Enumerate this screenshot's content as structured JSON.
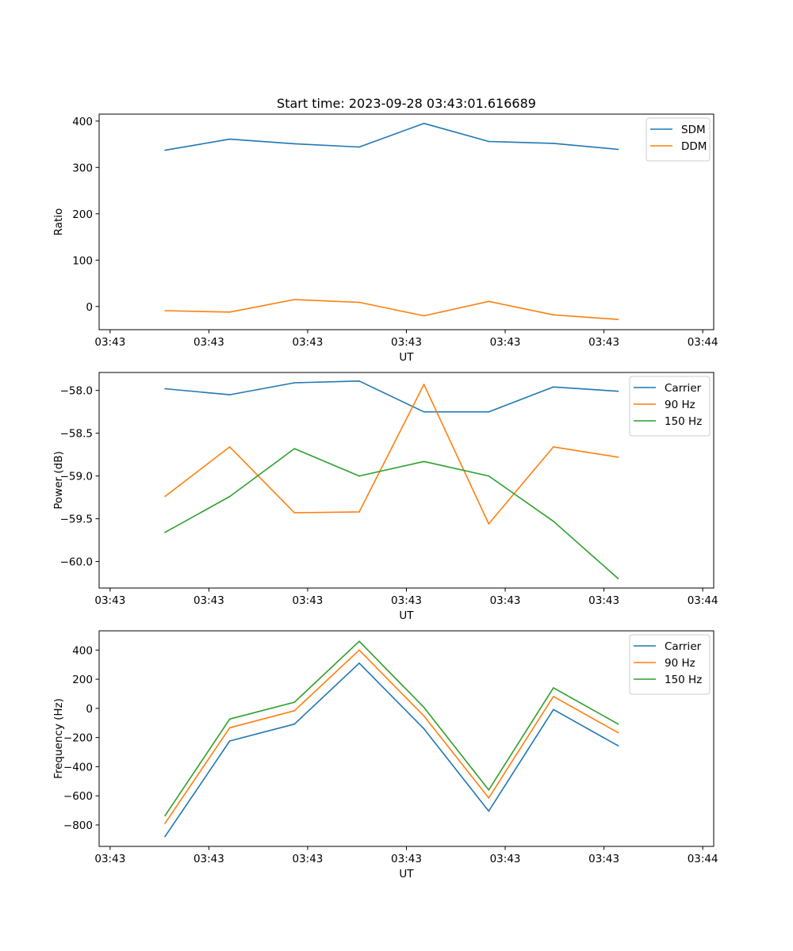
{
  "figure": {
    "title": "Start time: 2023-09-28 03:43:01.616689"
  },
  "chart_data": [
    {
      "type": "line",
      "xlabel": "UT",
      "ylabel": "Ratio",
      "xlim": [
        -0.12,
        1.0
      ],
      "ylim": [
        -50,
        415
      ],
      "x_ticks": [
        -0.1,
        0.08,
        0.26,
        0.44,
        0.62,
        0.8,
        0.98
      ],
      "x_tick_labels": [
        "03:43",
        "03:43",
        "03:43",
        "03:43",
        "03:43",
        "03:43",
        "03:44"
      ],
      "y_ticks": [
        0,
        100,
        200,
        300,
        400
      ],
      "y_tick_labels": [
        "0",
        "100",
        "200",
        "300",
        "400"
      ],
      "legend_position": "top-right",
      "x": [
        0.0,
        0.118,
        0.236,
        0.354,
        0.472,
        0.59,
        0.708,
        0.826
      ],
      "series": [
        {
          "name": "SDM",
          "color": "#1f77b4",
          "values": [
            337,
            361,
            351,
            344,
            395,
            356,
            352,
            339
          ]
        },
        {
          "name": "DDM",
          "color": "#ff7f0e",
          "values": [
            -9,
            -12,
            15,
            9,
            -20,
            11,
            -18,
            -28
          ]
        }
      ]
    },
    {
      "type": "line",
      "xlabel": "UT",
      "ylabel": "Power (dB)",
      "xlim": [
        -0.12,
        1.0
      ],
      "ylim": [
        -60.31,
        -57.79
      ],
      "x_ticks": [
        -0.1,
        0.08,
        0.26,
        0.44,
        0.62,
        0.8,
        0.98
      ],
      "x_tick_labels": [
        "03:43",
        "03:43",
        "03:43",
        "03:43",
        "03:43",
        "03:43",
        "03:44"
      ],
      "y_ticks": [
        -58.0,
        -58.5,
        -59.0,
        -59.5,
        -60.0
      ],
      "y_tick_labels": [
        "−58.0",
        "−58.5",
        "−59.0",
        "−59.5",
        "−60.0"
      ],
      "legend_position": "top-right",
      "x": [
        0.0,
        0.118,
        0.236,
        0.354,
        0.472,
        0.59,
        0.708,
        0.826
      ],
      "series": [
        {
          "name": "Carrier",
          "color": "#1f77b4",
          "values": [
            -57.98,
            -58.05,
            -57.91,
            -57.89,
            -58.25,
            -58.25,
            -57.96,
            -58.01
          ]
        },
        {
          "name": "90 Hz",
          "color": "#ff7f0e",
          "values": [
            -59.24,
            -58.66,
            -59.43,
            -59.42,
            -57.93,
            -59.56,
            -58.66,
            -58.78
          ]
        },
        {
          "name": "150 Hz",
          "color": "#2ca02c",
          "values": [
            -59.66,
            -59.24,
            -58.68,
            -59.0,
            -58.83,
            -59.0,
            -59.53,
            -60.2
          ]
        }
      ]
    },
    {
      "type": "line",
      "xlabel": "UT",
      "ylabel": "Frequency (Hz)",
      "xlim": [
        -0.12,
        1.0
      ],
      "ylim": [
        -947,
        532
      ],
      "x_ticks": [
        -0.1,
        0.08,
        0.26,
        0.44,
        0.62,
        0.8,
        0.98
      ],
      "x_tick_labels": [
        "03:43",
        "03:43",
        "03:43",
        "03:43",
        "03:43",
        "03:43",
        "03:44"
      ],
      "y_ticks": [
        400,
        200,
        0,
        -200,
        -400,
        -600,
        -800
      ],
      "y_tick_labels": [
        "400",
        "200",
        "0",
        "−200",
        "−400",
        "−600",
        "−800"
      ],
      "legend_position": "top-right",
      "x": [
        0.0,
        0.118,
        0.236,
        0.354,
        0.472,
        0.59,
        0.708,
        0.826
      ],
      "series": [
        {
          "name": "Carrier",
          "color": "#1f77b4",
          "values": [
            -880,
            -224,
            -108,
            310,
            -140,
            -705,
            -8,
            -257
          ]
        },
        {
          "name": "90 Hz",
          "color": "#ff7f0e",
          "values": [
            -790,
            -133,
            -16,
            400,
            -52,
            -615,
            82,
            -167
          ]
        },
        {
          "name": "150 Hz",
          "color": "#2ca02c",
          "values": [
            -737,
            -73,
            42,
            460,
            7,
            -560,
            141,
            -108
          ]
        }
      ]
    }
  ]
}
